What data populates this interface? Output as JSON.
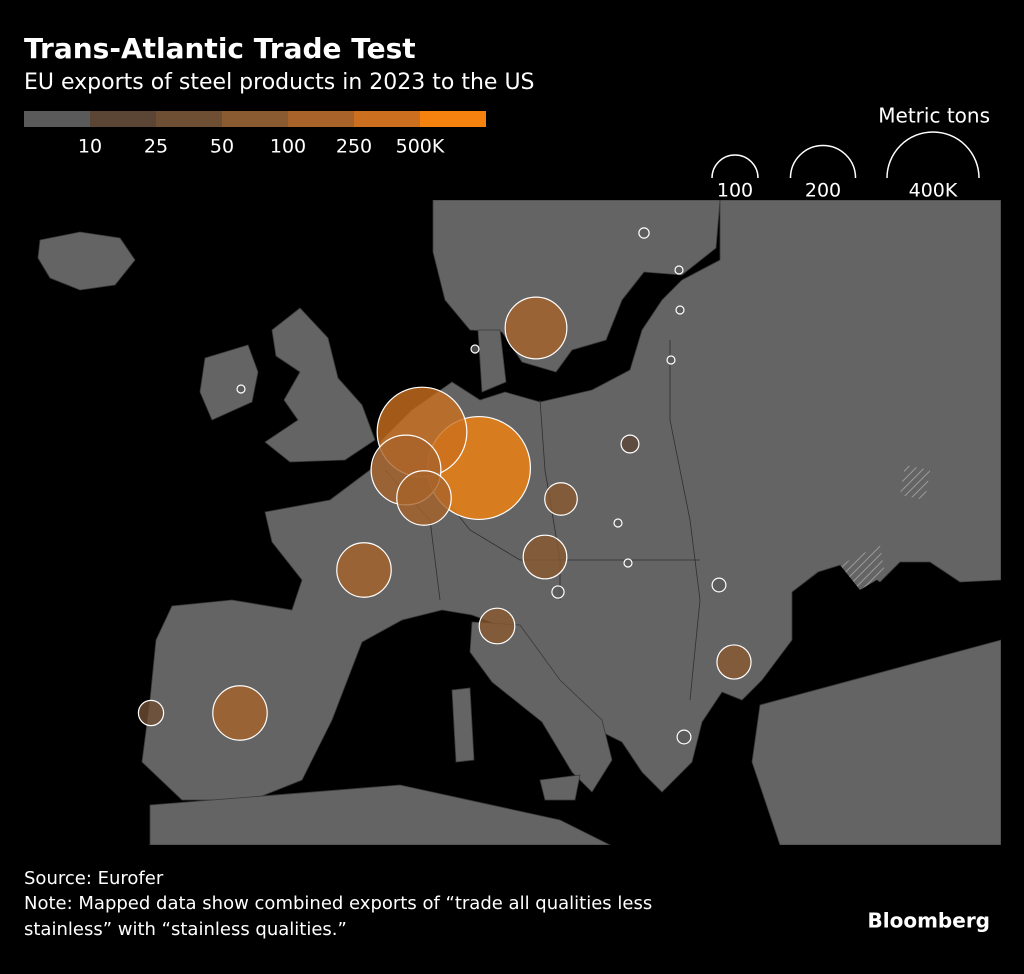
{
  "header": {
    "title": "Trans-Atlantic Trade Test",
    "subtitle": "EU exports of steel products in 2023 to the US"
  },
  "color_scale": {
    "ticks": [
      10,
      25,
      50,
      100,
      250,
      {
        "value": 500,
        "label": "500K"
      }
    ],
    "colors": [
      "#5a5a5a",
      "#5b4636",
      "#6f4f33",
      "#8a5a30",
      "#a8632b",
      "#cc6f1e",
      "#f5820f"
    ]
  },
  "size_legend": {
    "title": "Metric tons",
    "ticks": [
      100,
      200,
      {
        "value": 400,
        "label": "400K"
      }
    ]
  },
  "bubbles": [
    500,
    380,
    230,
    140,
    180,
    140,
    140,
    90,
    50,
    60,
    55,
    30,
    15,
    5,
    3,
    3,
    3,
    3,
    3,
    3,
    3,
    7,
    9,
    9
  ],
  "footer": {
    "source": "Source: Eurofer",
    "note": [
      "Note: Mapped data show combined exports of “trade all qualities less",
      "stainless” with “stainless qualities.”"
    ],
    "brand": "Bloomberg"
  }
}
